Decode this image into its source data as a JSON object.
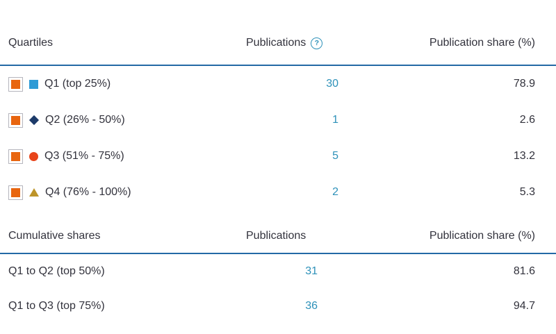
{
  "palette": {
    "accent_blue": "#2369a5",
    "link_teal": "#2d91b9",
    "text_dark": "#32323c",
    "checkbox_orange": "#e8650f",
    "checkbox_border": "#b5b5bd",
    "marker_q1": "#2e9bd6",
    "marker_q2": "#1c3a69",
    "marker_q3": "#e8441a",
    "marker_q4": "#bd9429"
  },
  "quartiles_table": {
    "headers": {
      "col1": "Quartiles",
      "col2": "Publications",
      "col3": "Publication share (%)",
      "help_icon": "?"
    },
    "rows": [
      {
        "label": "Q1 (top 25%)",
        "marker": "square",
        "publications": "30",
        "share": "78.9"
      },
      {
        "label": "Q2 (26% - 50%)",
        "marker": "diamond",
        "publications": "1",
        "share": "2.6"
      },
      {
        "label": "Q3 (51% - 75%)",
        "marker": "circle",
        "publications": "5",
        "share": "13.2"
      },
      {
        "label": "Q4 (76% - 100%)",
        "marker": "triangle",
        "publications": "2",
        "share": "5.3"
      }
    ]
  },
  "cumulative_table": {
    "headers": {
      "col1": "Cumulative shares",
      "col2": "Publications",
      "col3": "Publication share (%)"
    },
    "rows": [
      {
        "label": "Q1 to Q2 (top 50%)",
        "publications": "31",
        "share": "81.6"
      },
      {
        "label": "Q1 to Q3 (top 75%)",
        "publications": "36",
        "share": "94.7"
      }
    ]
  }
}
